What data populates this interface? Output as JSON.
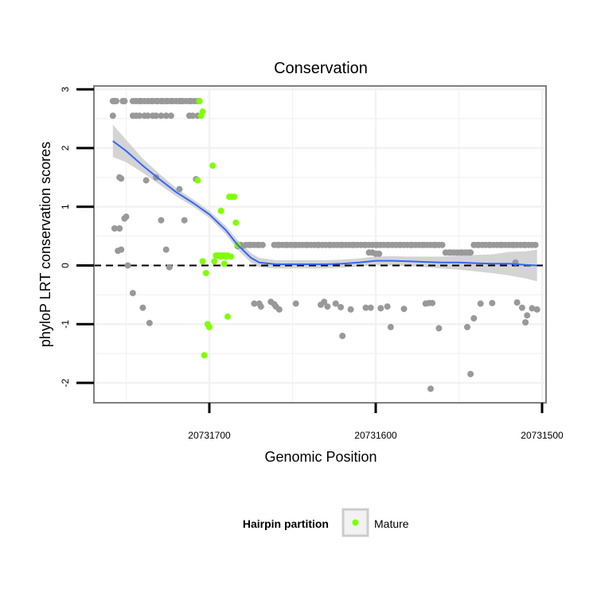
{
  "chart_data": {
    "type": "scatter",
    "title": "Conservation",
    "xlabel": "Genomic Position",
    "ylabel": "phyloP LRT conservation scores",
    "xlim": [
      20731767,
      20731493
    ],
    "ylim": [
      -2.35,
      3.05
    ],
    "x_reversed": true,
    "x_ticks": [
      20731700,
      20731600,
      20731500
    ],
    "x_tick_labels": [
      "20731700",
      "20731600",
      "20731500"
    ],
    "y_ticks": [
      3,
      2,
      1,
      0,
      -1,
      -2
    ],
    "y_tick_labels": [
      "3",
      "2",
      "1",
      "0",
      "-1",
      "-2"
    ],
    "reference_line": {
      "y": 0,
      "style": "dashed"
    },
    "legend": {
      "title": "Hairpin partition",
      "entries": [
        "Mature"
      ],
      "position": "bottom"
    },
    "colors": {
      "other": "#999999",
      "mature": "#7fff00",
      "smooth": "#3366ff",
      "ribbon": "#cccccc",
      "grid": "#f2f2f2",
      "panel_border": "#7f7f7f"
    },
    "series": [
      {
        "name": "Other",
        "points": [
          [
            20731758,
            2.8
          ],
          [
            20731757,
            2.8
          ],
          [
            20731756,
            2.8
          ],
          [
            20731758,
            2.55
          ],
          [
            20731752,
            2.8
          ],
          [
            20731751,
            2.8
          ],
          [
            20731746,
            2.8
          ],
          [
            20731744,
            2.8
          ],
          [
            20731742,
            2.8
          ],
          [
            20731741,
            2.8
          ],
          [
            20731739,
            2.8
          ],
          [
            20731737,
            2.8
          ],
          [
            20731735,
            2.8
          ],
          [
            20731734,
            2.8
          ],
          [
            20731732,
            2.8
          ],
          [
            20731731,
            2.8
          ],
          [
            20731729,
            2.8
          ],
          [
            20731728,
            2.8
          ],
          [
            20731726,
            2.8
          ],
          [
            20731725,
            2.8
          ],
          [
            20731723,
            2.8
          ],
          [
            20731722,
            2.8
          ],
          [
            20731720,
            2.8
          ],
          [
            20731718,
            2.8
          ],
          [
            20731717,
            2.8
          ],
          [
            20731716,
            2.8
          ],
          [
            20731714,
            2.8
          ],
          [
            20731712,
            2.8
          ],
          [
            20731711,
            2.8
          ],
          [
            20731709,
            2.8
          ],
          [
            20731707,
            2.8
          ],
          [
            20731706,
            2.8
          ],
          [
            20731746,
            2.55
          ],
          [
            20731744,
            2.55
          ],
          [
            20731742,
            2.55
          ],
          [
            20731739,
            2.55
          ],
          [
            20731737,
            2.55
          ],
          [
            20731734,
            2.55
          ],
          [
            20731732,
            2.55
          ],
          [
            20731729,
            2.55
          ],
          [
            20731726,
            2.55
          ],
          [
            20731723,
            2.55
          ],
          [
            20731712,
            2.55
          ],
          [
            20731710,
            2.55
          ],
          [
            20731707,
            2.55
          ],
          [
            20731708,
            1.47
          ],
          [
            20731754,
            1.5
          ],
          [
            20731753,
            1.48
          ],
          [
            20731738,
            1.45
          ],
          [
            20731732,
            1.5
          ],
          [
            20731718,
            1.3
          ],
          [
            20731750,
            0.83
          ],
          [
            20731751,
            0.8
          ],
          [
            20731757,
            0.63
          ],
          [
            20731754,
            0.63
          ],
          [
            20731715,
            0.77
          ],
          [
            20731729,
            0.77
          ],
          [
            20731755,
            0.25
          ],
          [
            20731753,
            0.27
          ],
          [
            20731726,
            0.27
          ],
          [
            20731749,
            0.0
          ],
          [
            20731724,
            -0.03
          ],
          [
            20731746,
            -0.47
          ],
          [
            20731740,
            -0.72
          ],
          [
            20731736,
            -0.98
          ],
          [
            20731681,
            0.35
          ],
          [
            20731678,
            0.35
          ],
          [
            20731676,
            0.35
          ],
          [
            20731675,
            0.35
          ],
          [
            20731673,
            0.35
          ],
          [
            20731671,
            0.35
          ],
          [
            20731670,
            0.35
          ],
          [
            20731668,
            0.35
          ],
          [
            20731661,
            0.35
          ],
          [
            20731659,
            0.35
          ],
          [
            20731658,
            0.35
          ],
          [
            20731656,
            0.35
          ],
          [
            20731654,
            0.35
          ],
          [
            20731653,
            0.35
          ],
          [
            20731651,
            0.35
          ],
          [
            20731649,
            0.35
          ],
          [
            20731648,
            0.35
          ],
          [
            20731646,
            0.35
          ],
          [
            20731644,
            0.35
          ],
          [
            20731642,
            0.35
          ],
          [
            20731641,
            0.35
          ],
          [
            20731639,
            0.35
          ],
          [
            20731637,
            0.35
          ],
          [
            20731635,
            0.35
          ],
          [
            20731634,
            0.35
          ],
          [
            20731632,
            0.35
          ],
          [
            20731630,
            0.35
          ],
          [
            20731628,
            0.35
          ],
          [
            20731627,
            0.35
          ],
          [
            20731625,
            0.35
          ],
          [
            20731623,
            0.35
          ],
          [
            20731621,
            0.35
          ],
          [
            20731620,
            0.35
          ],
          [
            20731618,
            0.35
          ],
          [
            20731616,
            0.35
          ],
          [
            20731614,
            0.35
          ],
          [
            20731613,
            0.35
          ],
          [
            20731611,
            0.35
          ],
          [
            20731609,
            0.35
          ],
          [
            20731607,
            0.35
          ],
          [
            20731606,
            0.35
          ],
          [
            20731604,
            0.35
          ],
          [
            20731602,
            0.35
          ],
          [
            20731600,
            0.35
          ],
          [
            20731599,
            0.35
          ],
          [
            20731597,
            0.35
          ],
          [
            20731595,
            0.35
          ],
          [
            20731593,
            0.35
          ],
          [
            20731592,
            0.35
          ],
          [
            20731590,
            0.35
          ],
          [
            20731588,
            0.35
          ],
          [
            20731586,
            0.35
          ],
          [
            20731585,
            0.35
          ],
          [
            20731583,
            0.35
          ],
          [
            20731581,
            0.35
          ],
          [
            20731579,
            0.35
          ],
          [
            20731578,
            0.35
          ],
          [
            20731576,
            0.35
          ],
          [
            20731574,
            0.35
          ],
          [
            20731572,
            0.35
          ],
          [
            20731571,
            0.35
          ],
          [
            20731569,
            0.35
          ],
          [
            20731567,
            0.35
          ],
          [
            20731565,
            0.35
          ],
          [
            20731564,
            0.35
          ],
          [
            20731562,
            0.35
          ],
          [
            20731560,
            0.35
          ],
          [
            20731541,
            0.35
          ],
          [
            20731539,
            0.35
          ],
          [
            20731538,
            0.35
          ],
          [
            20731536,
            0.35
          ],
          [
            20731534,
            0.35
          ],
          [
            20731532,
            0.35
          ],
          [
            20731531,
            0.35
          ],
          [
            20731529,
            0.35
          ],
          [
            20731527,
            0.35
          ],
          [
            20731525,
            0.35
          ],
          [
            20731524,
            0.35
          ],
          [
            20731522,
            0.35
          ],
          [
            20731520,
            0.35
          ],
          [
            20731518,
            0.35
          ],
          [
            20731517,
            0.35
          ],
          [
            20731515,
            0.35
          ],
          [
            20731513,
            0.35
          ],
          [
            20731511,
            0.35
          ],
          [
            20731510,
            0.35
          ],
          [
            20731508,
            0.35
          ],
          [
            20731506,
            0.35
          ],
          [
            20731504,
            0.35
          ],
          [
            20731683,
            0.33
          ],
          [
            20731680,
            0.33
          ],
          [
            20731558,
            0.22
          ],
          [
            20731556,
            0.22
          ],
          [
            20731555,
            0.22
          ],
          [
            20731553,
            0.22
          ],
          [
            20731551,
            0.22
          ],
          [
            20731549,
            0.22
          ],
          [
            20731548,
            0.22
          ],
          [
            20731546,
            0.22
          ],
          [
            20731544,
            0.22
          ],
          [
            20731543,
            0.22
          ],
          [
            20731604,
            0.22
          ],
          [
            20731602,
            0.22
          ],
          [
            20731600,
            0.2
          ],
          [
            20731598,
            0.2
          ],
          [
            20731516,
            0.05
          ],
          [
            20731673,
            -0.65
          ],
          [
            20731670,
            -0.65
          ],
          [
            20731669,
            -0.7
          ],
          [
            20731663,
            -0.62
          ],
          [
            20731661,
            -0.66
          ],
          [
            20731660,
            -0.7
          ],
          [
            20731658,
            -0.75
          ],
          [
            20731648,
            -0.65
          ],
          [
            20731633,
            -0.67
          ],
          [
            20731631,
            -0.62
          ],
          [
            20731629,
            -0.7
          ],
          [
            20731624,
            -0.65
          ],
          [
            20731621,
            -0.71
          ],
          [
            20731615,
            -0.75
          ],
          [
            20731606,
            -0.72
          ],
          [
            20731603,
            -0.72
          ],
          [
            20731597,
            -0.73
          ],
          [
            20731593,
            -0.7
          ],
          [
            20731583,
            -0.74
          ],
          [
            20731570,
            -0.65
          ],
          [
            20731568,
            -0.64
          ],
          [
            20731566,
            -0.64
          ],
          [
            20731537,
            -0.65
          ],
          [
            20731530,
            -0.64
          ],
          [
            20731515,
            -0.63
          ],
          [
            20731512,
            -0.72
          ],
          [
            20731509,
            -0.85
          ],
          [
            20731506,
            -0.73
          ],
          [
            20731503,
            -0.75
          ],
          [
            20731591,
            -1.05
          ],
          [
            20731620,
            -1.2
          ],
          [
            20731562,
            -1.07
          ],
          [
            20731545,
            -1.05
          ],
          [
            20731541,
            -0.9
          ],
          [
            20731510,
            -0.97
          ],
          [
            20731543,
            -1.85
          ],
          [
            20731567,
            -2.1
          ]
        ]
      },
      {
        "name": "Mature",
        "points": [
          [
            20731706,
            2.8
          ],
          [
            20731705,
            2.55
          ],
          [
            20731704,
            2.62
          ],
          [
            20731707,
            1.45
          ],
          [
            20731698,
            1.7
          ],
          [
            20731693,
            0.93
          ],
          [
            20731688,
            1.17
          ],
          [
            20731687,
            1.17
          ],
          [
            20731686,
            1.17
          ],
          [
            20731685,
            1.17
          ],
          [
            20731684,
            0.73
          ],
          [
            20731683,
            0.35
          ],
          [
            20731696,
            0.17
          ],
          [
            20731695,
            0.17
          ],
          [
            20731694,
            0.17
          ],
          [
            20731693,
            0.15
          ],
          [
            20731692,
            0.17
          ],
          [
            20731691,
            0.17
          ],
          [
            20731690,
            0.15
          ],
          [
            20731689,
            0.17
          ],
          [
            20731687,
            0.15
          ],
          [
            20731697,
            0.07
          ],
          [
            20731704,
            0.07
          ],
          [
            20731691,
            0.03
          ],
          [
            20731702,
            -0.13
          ],
          [
            20731701,
            -1.0
          ],
          [
            20731700,
            -1.05
          ],
          [
            20731689,
            -0.87
          ],
          [
            20731703,
            -1.53
          ]
        ]
      }
    ],
    "smooth": {
      "x": [
        20731758,
        20731750,
        20731740,
        20731730,
        20731720,
        20731710,
        20731700,
        20731690,
        20731683,
        20731675,
        20731670,
        20731660,
        20731650,
        20731640,
        20731630,
        20731620,
        20731610,
        20731600,
        20731590,
        20731580,
        20731570,
        20731560,
        20731550,
        20731540,
        20731530,
        20731520,
        20731510,
        20731503
      ],
      "y": [
        2.12,
        1.95,
        1.7,
        1.47,
        1.25,
        1.07,
        0.87,
        0.6,
        0.35,
        0.13,
        0.05,
        0.02,
        0.02,
        0.02,
        0.02,
        0.03,
        0.05,
        0.08,
        0.08,
        0.07,
        0.06,
        0.05,
        0.05,
        0.04,
        0.03,
        0.03,
        0.01,
        0.0
      ],
      "lower": [
        1.85,
        1.76,
        1.58,
        1.38,
        1.18,
        1.01,
        0.81,
        0.53,
        0.27,
        0.05,
        -0.03,
        -0.05,
        -0.05,
        -0.05,
        -0.05,
        -0.04,
        -0.02,
        0.01,
        0.0,
        -0.01,
        -0.03,
        -0.05,
        -0.07,
        -0.1,
        -0.13,
        -0.17,
        -0.22,
        -0.27
      ],
      "upper": [
        2.4,
        2.14,
        1.82,
        1.56,
        1.32,
        1.13,
        0.93,
        0.67,
        0.43,
        0.21,
        0.13,
        0.09,
        0.09,
        0.09,
        0.09,
        0.1,
        0.12,
        0.15,
        0.16,
        0.15,
        0.15,
        0.15,
        0.17,
        0.18,
        0.19,
        0.23,
        0.24,
        0.27
      ]
    }
  }
}
